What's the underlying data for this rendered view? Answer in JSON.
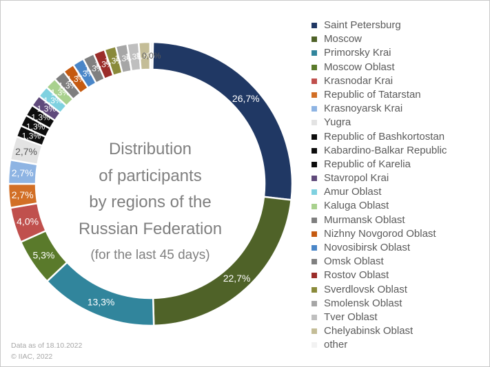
{
  "chart_data": {
    "type": "pie",
    "title": [
      "Distribution",
      "of participants",
      "by regions of the",
      "Russian Federation"
    ],
    "subtitle": "(for the last 45 days)",
    "series": [
      {
        "name": "Saint Petersburg",
        "value": 26.7,
        "label": "26,7%",
        "color": "#203864"
      },
      {
        "name": "Moscow",
        "value": 22.7,
        "label": "22,7%",
        "color": "#4f6228"
      },
      {
        "name": "Primorsky Krai",
        "value": 13.3,
        "label": "13,3%",
        "color": "#31859c"
      },
      {
        "name": "Moscow Oblast",
        "value": 5.3,
        "label": "5,3%",
        "color": "#5a7a2b"
      },
      {
        "name": "Krasnodar Krai",
        "value": 4.0,
        "label": "4,0%",
        "color": "#c0504d"
      },
      {
        "name": "Republic of Tatarstan",
        "value": 2.7,
        "label": "2,7%",
        "color": "#d26f26"
      },
      {
        "name": "Krasnoyarsk Krai",
        "value": 2.7,
        "label": "2,7%",
        "color": "#8eb4e3"
      },
      {
        "name": "Yugra",
        "value": 2.7,
        "label": "2,7%",
        "color": "#e3e3e3"
      },
      {
        "name": "Republic of Bashkortostan",
        "value": 1.3,
        "label": "1,3%",
        "color": "#0d0d0d"
      },
      {
        "name": "Kabardino-Balkar Republic",
        "value": 1.3,
        "label": "1,3%",
        "color": "#0d0d0d"
      },
      {
        "name": "Republic of Karelia",
        "value": 1.3,
        "label": "1,3%",
        "color": "#0d0d0d"
      },
      {
        "name": "Stavropol Krai",
        "value": 1.3,
        "label": "1,3%",
        "color": "#604a7b"
      },
      {
        "name": "Amur Oblast",
        "value": 1.3,
        "label": "1,3%",
        "color": "#7fd1e0"
      },
      {
        "name": "Kaluga Oblast",
        "value": 1.3,
        "label": "1,3%",
        "color": "#a9d18e"
      },
      {
        "name": "Murmansk Oblast",
        "value": 1.3,
        "label": "1,3%",
        "color": "#7f7f7f"
      },
      {
        "name": "Nizhny Novgorod Oblast",
        "value": 1.3,
        "label": "1,3%",
        "color": "#c55a11"
      },
      {
        "name": "Novosibirsk Oblast",
        "value": 1.3,
        "label": "1,3%",
        "color": "#4a86c8"
      },
      {
        "name": "Omsk Oblast",
        "value": 1.3,
        "label": "1,3%",
        "color": "#808080"
      },
      {
        "name": "Rostov Oblast",
        "value": 1.3,
        "label": "1,3%",
        "color": "#9b2d2a"
      },
      {
        "name": "Sverdlovsk Oblast",
        "value": 1.3,
        "label": "1,3%",
        "color": "#8a8a3a"
      },
      {
        "name": "Smolensk Oblast",
        "value": 1.3,
        "label": "1,3%",
        "color": "#a6a6a6"
      },
      {
        "name": "Tver Oblast",
        "value": 1.3,
        "label": "1,3%",
        "color": "#bfbfbf"
      },
      {
        "name": "Chelyabinsk Oblast",
        "value": 1.3,
        "label": "1,3%",
        "color": "#c4bd97"
      },
      {
        "name": "other",
        "value": 0.0,
        "label": "0,0%",
        "color": "#f2f2f2"
      }
    ],
    "legend_position": "right"
  },
  "footer": {
    "date_text": "Data as of 18.10.2022",
    "copyright": "© IIAC, 2022"
  }
}
